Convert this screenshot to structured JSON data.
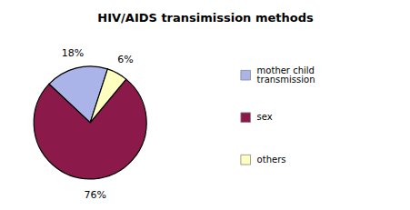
{
  "chart_data": {
    "type": "pie",
    "title": "HIV/AIDS transimission methods",
    "categories": [
      "mother child\ntransmission",
      "sex",
      "others"
    ],
    "values": [
      18,
      76,
      6
    ],
    "value_labels": [
      "18%",
      "76%",
      "6%"
    ],
    "colors": [
      "#aab4e8",
      "#8b1a4a",
      "#ffffc0"
    ],
    "data_labels": true,
    "legend": "right"
  }
}
